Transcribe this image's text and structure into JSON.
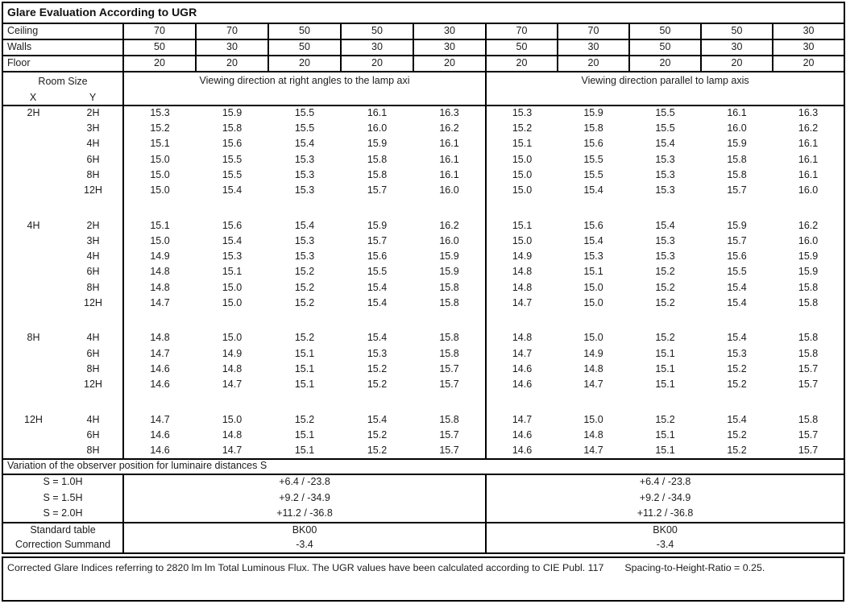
{
  "title": "Glare Evaluation According to UGR",
  "surface_rows": [
    {
      "label": "Ceiling",
      "values": [
        "70",
        "70",
        "50",
        "50",
        "30",
        "70",
        "70",
        "50",
        "50",
        "30"
      ]
    },
    {
      "label": "Walls",
      "values": [
        "50",
        "30",
        "50",
        "30",
        "30",
        "50",
        "30",
        "50",
        "30",
        "30"
      ]
    },
    {
      "label": "Floor",
      "values": [
        "20",
        "20",
        "20",
        "20",
        "20",
        "20",
        "20",
        "20",
        "20",
        "20"
      ]
    }
  ],
  "room_size": {
    "label": "Room Size",
    "x_label": "X",
    "y_label": "Y"
  },
  "viewing_left": "Viewing direction at right angles to the lamp axi",
  "viewing_right": "Viewing direction parallel to lamp axis",
  "ugr_blocks": [
    {
      "x": "2H",
      "rows": [
        {
          "y": "2H",
          "values": [
            "15.3",
            "15.9",
            "15.5",
            "16.1",
            "16.3",
            "15.3",
            "15.9",
            "15.5",
            "16.1",
            "16.3"
          ]
        },
        {
          "y": "3H",
          "values": [
            "15.2",
            "15.8",
            "15.5",
            "16.0",
            "16.2",
            "15.2",
            "15.8",
            "15.5",
            "16.0",
            "16.2"
          ]
        },
        {
          "y": "4H",
          "values": [
            "15.1",
            "15.6",
            "15.4",
            "15.9",
            "16.1",
            "15.1",
            "15.6",
            "15.4",
            "15.9",
            "16.1"
          ]
        },
        {
          "y": "6H",
          "values": [
            "15.0",
            "15.5",
            "15.3",
            "15.8",
            "16.1",
            "15.0",
            "15.5",
            "15.3",
            "15.8",
            "16.1"
          ]
        },
        {
          "y": "8H",
          "values": [
            "15.0",
            "15.5",
            "15.3",
            "15.8",
            "16.1",
            "15.0",
            "15.5",
            "15.3",
            "15.8",
            "16.1"
          ]
        },
        {
          "y": "12H",
          "values": [
            "15.0",
            "15.4",
            "15.3",
            "15.7",
            "16.0",
            "15.0",
            "15.4",
            "15.3",
            "15.7",
            "16.0"
          ]
        }
      ]
    },
    {
      "x": "4H",
      "rows": [
        {
          "y": "2H",
          "values": [
            "15.1",
            "15.6",
            "15.4",
            "15.9",
            "16.2",
            "15.1",
            "15.6",
            "15.4",
            "15.9",
            "16.2"
          ]
        },
        {
          "y": "3H",
          "values": [
            "15.0",
            "15.4",
            "15.3",
            "15.7",
            "16.0",
            "15.0",
            "15.4",
            "15.3",
            "15.7",
            "16.0"
          ]
        },
        {
          "y": "4H",
          "values": [
            "14.9",
            "15.3",
            "15.3",
            "15.6",
            "15.9",
            "14.9",
            "15.3",
            "15.3",
            "15.6",
            "15.9"
          ]
        },
        {
          "y": "6H",
          "values": [
            "14.8",
            "15.1",
            "15.2",
            "15.5",
            "15.9",
            "14.8",
            "15.1",
            "15.2",
            "15.5",
            "15.9"
          ]
        },
        {
          "y": "8H",
          "values": [
            "14.8",
            "15.0",
            "15.2",
            "15.4",
            "15.8",
            "14.8",
            "15.0",
            "15.2",
            "15.4",
            "15.8"
          ]
        },
        {
          "y": "12H",
          "values": [
            "14.7",
            "15.0",
            "15.2",
            "15.4",
            "15.8",
            "14.7",
            "15.0",
            "15.2",
            "15.4",
            "15.8"
          ]
        }
      ]
    },
    {
      "x": "8H",
      "rows": [
        {
          "y": "4H",
          "values": [
            "14.8",
            "15.0",
            "15.2",
            "15.4",
            "15.8",
            "14.8",
            "15.0",
            "15.2",
            "15.4",
            "15.8"
          ]
        },
        {
          "y": "6H",
          "values": [
            "14.7",
            "14.9",
            "15.1",
            "15.3",
            "15.8",
            "14.7",
            "14.9",
            "15.1",
            "15.3",
            "15.8"
          ]
        },
        {
          "y": "8H",
          "values": [
            "14.6",
            "14.8",
            "15.1",
            "15.2",
            "15.7",
            "14.6",
            "14.8",
            "15.1",
            "15.2",
            "15.7"
          ]
        },
        {
          "y": "12H",
          "values": [
            "14.6",
            "14.7",
            "15.1",
            "15.2",
            "15.7",
            "14.6",
            "14.7",
            "15.1",
            "15.2",
            "15.7"
          ]
        }
      ]
    },
    {
      "x": "12H",
      "rows": [
        {
          "y": "4H",
          "values": [
            "14.7",
            "15.0",
            "15.2",
            "15.4",
            "15.8",
            "14.7",
            "15.0",
            "15.2",
            "15.4",
            "15.8"
          ]
        },
        {
          "y": "6H",
          "values": [
            "14.6",
            "14.8",
            "15.1",
            "15.2",
            "15.7",
            "14.6",
            "14.8",
            "15.1",
            "15.2",
            "15.7"
          ]
        },
        {
          "y": "8H",
          "values": [
            "14.6",
            "14.7",
            "15.1",
            "15.2",
            "15.7",
            "14.6",
            "14.7",
            "15.1",
            "15.2",
            "15.7"
          ]
        }
      ]
    }
  ],
  "variation_header": "Variation of the observer position for luminaire distances S",
  "variation_rows": [
    {
      "label": "S = 1.0H",
      "left": "+6.4 / -23.8",
      "right": "+6.4 / -23.8"
    },
    {
      "label": "S = 1.5H",
      "left": "+9.2 / -34.9",
      "right": "+9.2 / -34.9"
    },
    {
      "label": "S = 2.0H",
      "left": "+11.2 / -36.8",
      "right": "+11.2 / -36.8"
    }
  ],
  "summary_rows": [
    {
      "label": "Standard table",
      "left": "BK00",
      "right": "BK00"
    },
    {
      "label": "Correction Summand",
      "left": "-3.4",
      "right": "-3.4"
    }
  ],
  "footer": {
    "text": "Corrected Glare Indices referring to 2820 lm lm Total Luminous Flux. The UGR values have been calculated according to CIE Publ. 117",
    "ratio": "Spacing-to-Height-Ratio = 0.25."
  }
}
